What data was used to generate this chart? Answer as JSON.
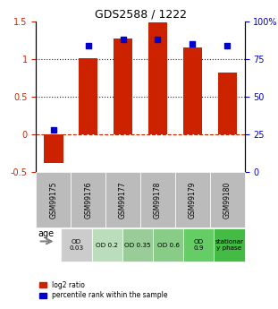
{
  "title": "GDS2588 / 1222",
  "samples": [
    "GSM99175",
    "GSM99176",
    "GSM99177",
    "GSM99178",
    "GSM99179",
    "GSM99180"
  ],
  "log2_ratio": [
    -0.38,
    1.01,
    1.27,
    1.49,
    1.15,
    0.82
  ],
  "percentile_rank": [
    0.28,
    0.84,
    0.88,
    0.88,
    0.85,
    0.84
  ],
  "ylim_left": [
    -0.5,
    1.5
  ],
  "ylim_right": [
    0,
    100
  ],
  "bar_color": "#cc2200",
  "dot_color": "#0000cc",
  "hline_color": "#cc2200",
  "dotted_line_color": "#222222",
  "sample_bg_color": "#bbbbbb",
  "age_colors": [
    "#cccccc",
    "#aaddaa",
    "#99dd99",
    "#88cc88",
    "#77dd77",
    "#55cc55"
  ],
  "age_labels": [
    "OD\n0.03",
    "OD 0.2",
    "OD 0.35",
    "OD 0.6",
    "OD\n0.9",
    "stationar\ny phase"
  ],
  "legend_red": "log2 ratio",
  "legend_blue": "percentile rank within the sample",
  "right_ticks": [
    0,
    25,
    50,
    75,
    100
  ],
  "right_tick_labels": [
    "0",
    "25",
    "50",
    "75",
    "100%"
  ],
  "left_ticks": [
    -0.5,
    0,
    0.5,
    1.0,
    1.5
  ],
  "left_tick_labels": [
    "-0.5",
    "0",
    "0.5",
    "1",
    "1.5"
  ]
}
